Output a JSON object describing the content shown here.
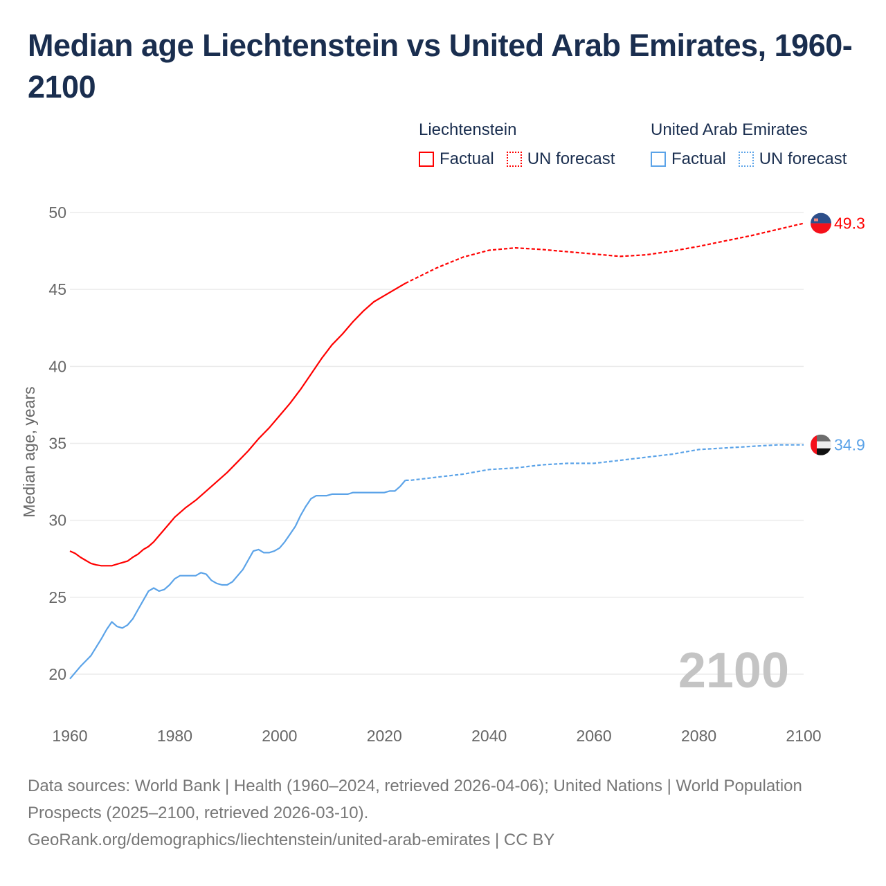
{
  "title": "Median age Liechtenstein vs United Arab Emirates, 1960-2100",
  "legend": {
    "groups": [
      {
        "name": "Liechtenstein",
        "factual": "Factual",
        "forecast": "UN forecast"
      },
      {
        "name": "United Arab Emirates",
        "factual": "Factual",
        "forecast": "UN forecast"
      }
    ]
  },
  "footer": {
    "line1": "Data sources: World Bank | Health (1960–2024, retrieved 2026-04-06); United Nations | World Population Prospects (2025–2100, retrieved 2026-03-10).",
    "line2": "GeoRank.org/demographics/liechtenstein/united-arab-emirates | CC BY"
  },
  "chart_data": {
    "type": "line",
    "title": "Median age Liechtenstein vs United Arab Emirates, 1960-2100",
    "xlabel": "",
    "ylabel": "Median age, years",
    "xlim": [
      1960,
      2100
    ],
    "ylim": [
      20,
      50
    ],
    "xticks": [
      1960,
      1980,
      2000,
      2020,
      2040,
      2060,
      2080,
      2100
    ],
    "yticks": [
      20,
      25,
      30,
      35,
      40,
      45,
      50
    ],
    "grid": true,
    "year_watermark": "2100",
    "series": [
      {
        "name": "Liechtenstein",
        "color": "#ff0000",
        "end_label": "49.3",
        "factual": {
          "x": [
            1960,
            1961,
            1962,
            1963,
            1964,
            1965,
            1966,
            1967,
            1968,
            1969,
            1970,
            1971,
            1972,
            1973,
            1974,
            1975,
            1976,
            1977,
            1978,
            1979,
            1980,
            1982,
            1984,
            1986,
            1988,
            1990,
            1992,
            1994,
            1996,
            1998,
            2000,
            2002,
            2004,
            2006,
            2008,
            2010,
            2012,
            2014,
            2016,
            2018,
            2020,
            2022,
            2024
          ],
          "y": [
            28.0,
            27.85,
            27.6,
            27.4,
            27.2,
            27.1,
            27.05,
            27.05,
            27.05,
            27.15,
            27.25,
            27.35,
            27.6,
            27.8,
            28.1,
            28.3,
            28.6,
            29.0,
            29.4,
            29.8,
            30.2,
            30.8,
            31.3,
            31.9,
            32.5,
            33.1,
            33.8,
            34.5,
            35.3,
            36.0,
            36.8,
            37.6,
            38.5,
            39.5,
            40.5,
            41.4,
            42.1,
            42.9,
            43.6,
            44.2,
            44.6,
            45.0,
            45.4
          ]
        },
        "forecast": {
          "x": [
            2024,
            2030,
            2035,
            2040,
            2045,
            2050,
            2055,
            2060,
            2065,
            2070,
            2075,
            2080,
            2085,
            2090,
            2095,
            2100
          ],
          "y": [
            45.4,
            46.4,
            47.1,
            47.55,
            47.7,
            47.6,
            47.45,
            47.3,
            47.15,
            47.25,
            47.5,
            47.8,
            48.15,
            48.5,
            48.9,
            49.3
          ]
        }
      },
      {
        "name": "United Arab Emirates",
        "color": "#5ba3e8",
        "end_label": "34.9",
        "factual": {
          "x": [
            1960,
            1962,
            1964,
            1966,
            1967,
            1968,
            1969,
            1970,
            1971,
            1972,
            1973,
            1974,
            1975,
            1976,
            1977,
            1978,
            1979,
            1980,
            1981,
            1984,
            1985,
            1986,
            1987,
            1988,
            1989,
            1990,
            1991,
            1992,
            1993,
            1994,
            1995,
            1996,
            1997,
            1998,
            1999,
            2000,
            2001,
            2002,
            2003,
            2004,
            2005,
            2006,
            2007,
            2009,
            2010,
            2013,
            2014,
            2020,
            2021,
            2022,
            2023,
            2024
          ],
          "y": [
            19.7,
            20.5,
            21.2,
            22.3,
            22.9,
            23.4,
            23.1,
            23.0,
            23.2,
            23.6,
            24.2,
            24.8,
            25.4,
            25.6,
            25.4,
            25.5,
            25.8,
            26.2,
            26.4,
            26.4,
            26.6,
            26.5,
            26.1,
            25.9,
            25.8,
            25.8,
            26.0,
            26.4,
            26.8,
            27.4,
            28.0,
            28.1,
            27.9,
            27.9,
            28.0,
            28.2,
            28.6,
            29.1,
            29.6,
            30.3,
            30.9,
            31.4,
            31.6,
            31.6,
            31.7,
            31.7,
            31.8,
            31.8,
            31.9,
            31.9,
            32.2,
            32.6
          ]
        },
        "forecast": {
          "x": [
            2024,
            2025,
            2030,
            2035,
            2040,
            2045,
            2050,
            2055,
            2060,
            2065,
            2070,
            2075,
            2080,
            2085,
            2090,
            2095,
            2100
          ],
          "y": [
            32.6,
            32.6,
            32.8,
            33.0,
            33.3,
            33.4,
            33.6,
            33.7,
            33.7,
            33.9,
            34.1,
            34.3,
            34.6,
            34.7,
            34.8,
            34.9,
            34.9
          ]
        }
      }
    ]
  }
}
